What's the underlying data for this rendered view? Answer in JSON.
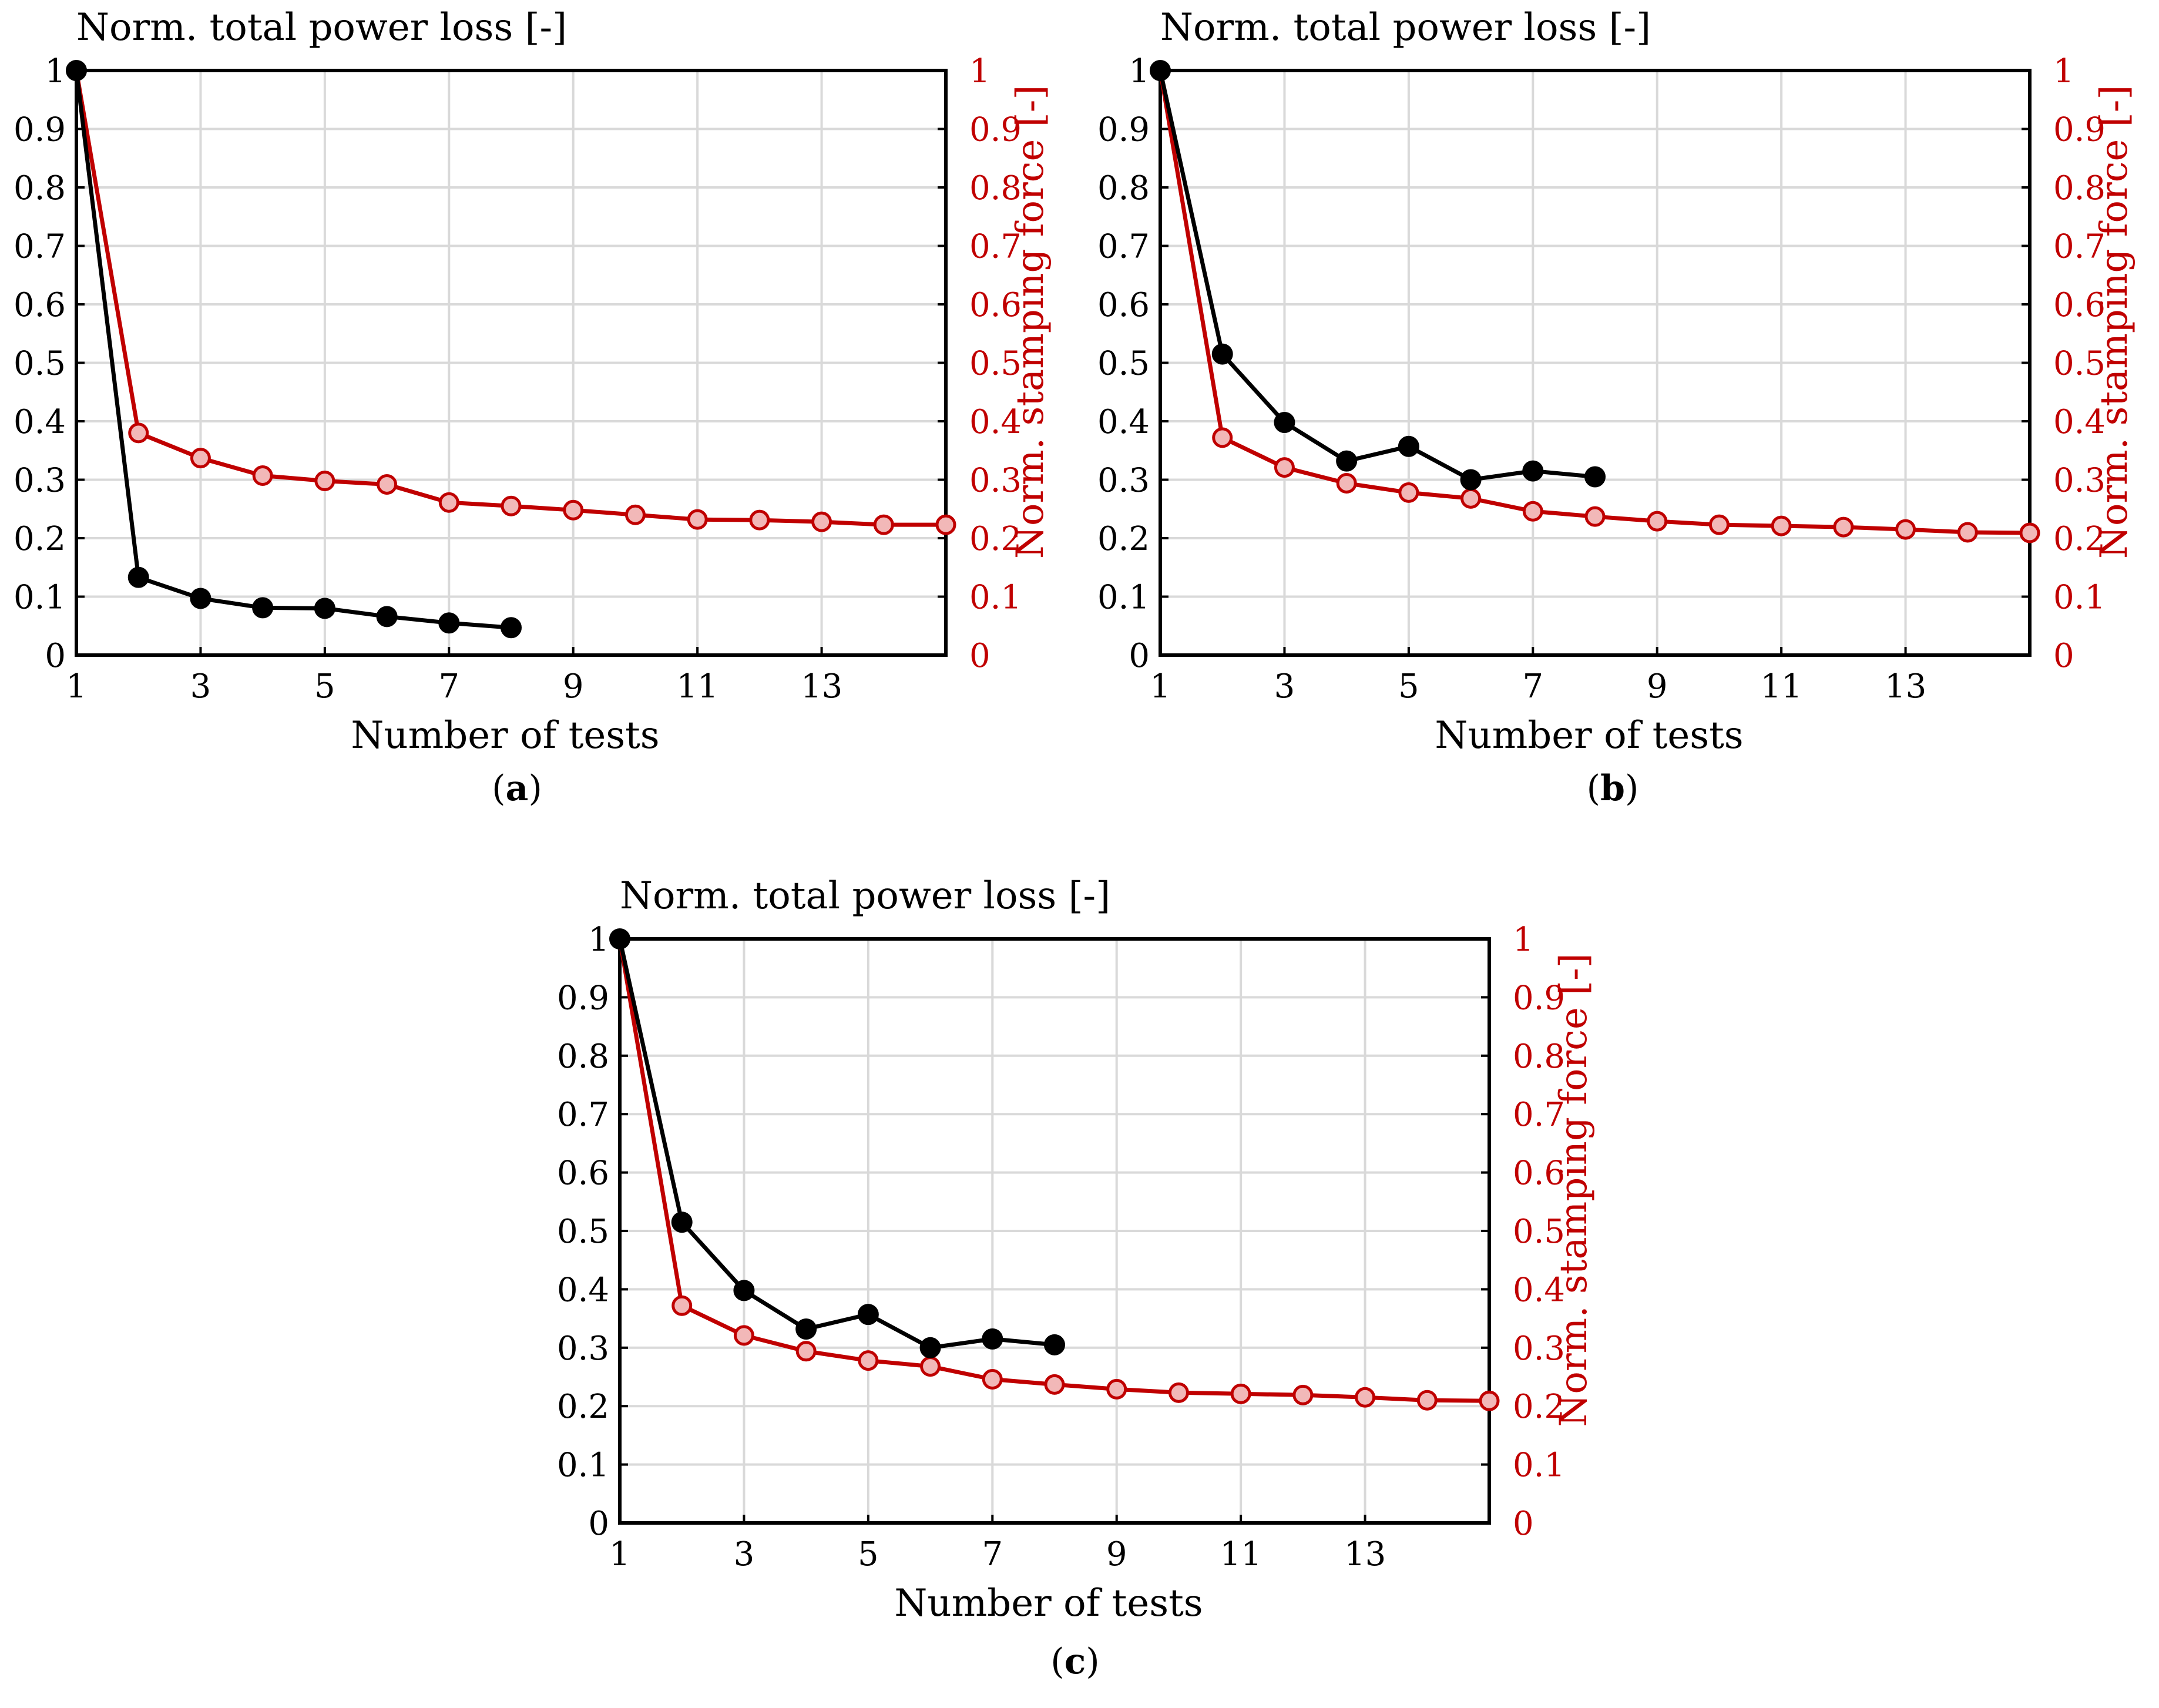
{
  "colors": {
    "power_loss_line": "#000000",
    "stamping_line": "#c00000",
    "stamping_marker_fill": "#f2b8b8",
    "grid": "#d9d9d9",
    "axis": "#000000"
  },
  "chart_data": [
    {
      "type": "line",
      "caption_label": "a",
      "ylabel_left": "Norm. total power loss [-]",
      "ylabel_right": "Norm. stamping force [-]",
      "xlabel": "Number of tests",
      "xlim": [
        1,
        15
      ],
      "ylim": [
        0,
        1
      ],
      "x_ticks": [
        "1",
        "3",
        "5",
        "7",
        "9",
        "11",
        "13"
      ],
      "y_ticks_left": [
        "0",
        "0.1",
        "0.2",
        "0.3",
        "0.4",
        "0.5",
        "0.6",
        "0.7",
        "0.8",
        "0.9",
        "1"
      ],
      "y_ticks_right": [
        "0",
        "0.1",
        "0.2",
        "0.3",
        "0.4",
        "0.5",
        "0.6",
        "0.7",
        "0.8",
        "0.9",
        "1"
      ],
      "grid": true,
      "series": [
        {
          "name": "Norm. total power loss",
          "axis": "left",
          "x": [
            1,
            2,
            3,
            4,
            5,
            6,
            7,
            8
          ],
          "values": [
            1.0,
            0.133,
            0.097,
            0.081,
            0.08,
            0.066,
            0.055,
            0.047
          ]
        },
        {
          "name": "Norm. stamping force",
          "axis": "right",
          "x": [
            1,
            2,
            3,
            4,
            5,
            6,
            7,
            8,
            9,
            10,
            11,
            12,
            13,
            14,
            15
          ],
          "values": [
            1.0,
            0.38,
            0.337,
            0.307,
            0.298,
            0.292,
            0.261,
            0.255,
            0.248,
            0.24,
            0.232,
            0.231,
            0.228,
            0.223,
            0.223
          ]
        }
      ]
    },
    {
      "type": "line",
      "caption_label": "b",
      "ylabel_left": "Norm. total power loss [-]",
      "ylabel_right": "Norm. stamping force [-]",
      "xlabel": "Number of tests",
      "xlim": [
        1,
        15
      ],
      "ylim": [
        0,
        1
      ],
      "x_ticks": [
        "1",
        "3",
        "5",
        "7",
        "9",
        "11",
        "13"
      ],
      "y_ticks_left": [
        "0",
        "0.1",
        "0.2",
        "0.3",
        "0.4",
        "0.5",
        "0.6",
        "0.7",
        "0.8",
        "0.9",
        "1"
      ],
      "y_ticks_right": [
        "0",
        "0.1",
        "0.2",
        "0.3",
        "0.4",
        "0.5",
        "0.6",
        "0.7",
        "0.8",
        "0.9",
        "1"
      ],
      "grid": true,
      "series": [
        {
          "name": "Norm. total power loss",
          "axis": "left",
          "x": [
            1,
            2,
            3,
            4,
            5,
            6,
            7,
            8
          ],
          "values": [
            1.0,
            0.515,
            0.398,
            0.332,
            0.357,
            0.3,
            0.315,
            0.305
          ]
        },
        {
          "name": "Norm. stamping force",
          "axis": "right",
          "x": [
            1,
            2,
            3,
            4,
            5,
            6,
            7,
            8,
            9,
            10,
            11,
            12,
            13,
            14,
            15
          ],
          "values": [
            1.0,
            0.372,
            0.321,
            0.294,
            0.278,
            0.268,
            0.246,
            0.237,
            0.229,
            0.223,
            0.221,
            0.219,
            0.215,
            0.21,
            0.209
          ]
        }
      ]
    },
    {
      "type": "line",
      "caption_label": "c",
      "ylabel_left": "Norm. total power loss [-]",
      "ylabel_right": "Norm. stamping force [-]",
      "xlabel": "Number of tests",
      "xlim": [
        1,
        15
      ],
      "ylim": [
        0,
        1
      ],
      "x_ticks": [
        "1",
        "3",
        "5",
        "7",
        "9",
        "11",
        "13"
      ],
      "y_ticks_left": [
        "0",
        "0.1",
        "0.2",
        "0.3",
        "0.4",
        "0.5",
        "0.6",
        "0.7",
        "0.8",
        "0.9",
        "1"
      ],
      "y_ticks_right": [
        "0",
        "0.1",
        "0.2",
        "0.3",
        "0.4",
        "0.5",
        "0.6",
        "0.7",
        "0.8",
        "0.9",
        "1"
      ],
      "grid": true,
      "series": [
        {
          "name": "Norm. total power loss",
          "axis": "left",
          "x": [
            1,
            2,
            3,
            4,
            5,
            6,
            7,
            8
          ],
          "values": [
            1.0,
            0.515,
            0.398,
            0.332,
            0.357,
            0.3,
            0.315,
            0.305
          ]
        },
        {
          "name": "Norm. stamping force",
          "axis": "right",
          "x": [
            1,
            2,
            3,
            4,
            5,
            6,
            7,
            8,
            9,
            10,
            11,
            12,
            13,
            14,
            15
          ],
          "values": [
            1.0,
            0.372,
            0.321,
            0.294,
            0.278,
            0.268,
            0.246,
            0.237,
            0.229,
            0.223,
            0.221,
            0.219,
            0.215,
            0.21,
            0.209
          ]
        }
      ]
    }
  ]
}
